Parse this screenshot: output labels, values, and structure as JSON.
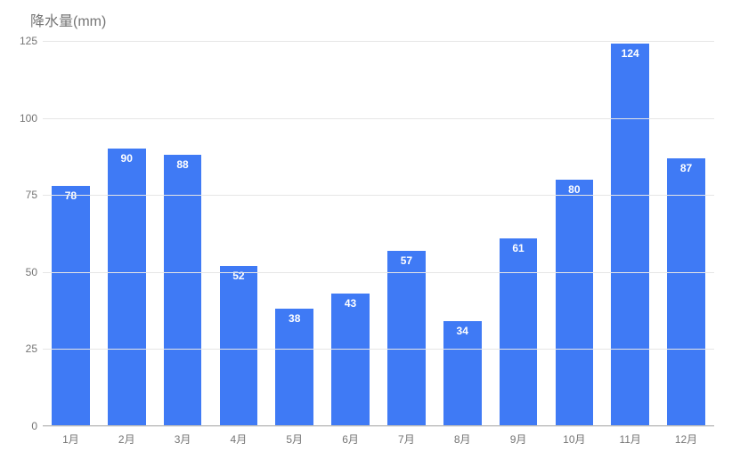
{
  "chart": {
    "type": "bar",
    "title": "降水量(mm)",
    "title_color": "#757575",
    "title_fontsize": 16,
    "background_color": "#ffffff",
    "bar_color": "#3f7af5",
    "bar_width": 0.68,
    "value_label_color": "#ffffff",
    "value_label_fontsize": 12,
    "axis_label_color": "#757575",
    "axis_label_fontsize": 12,
    "grid_color": "#e6e6e6",
    "baseline_color": "#bdbdbd",
    "ylim": [
      0,
      125
    ],
    "ytick_step": 25,
    "yticks": [
      0,
      25,
      50,
      75,
      100,
      125
    ],
    "categories": [
      "1月",
      "2月",
      "3月",
      "4月",
      "5月",
      "6月",
      "7月",
      "8月",
      "9月",
      "10月",
      "11月",
      "12月"
    ],
    "values": [
      78,
      90,
      88,
      52,
      38,
      43,
      57,
      34,
      61,
      80,
      124,
      87
    ]
  }
}
